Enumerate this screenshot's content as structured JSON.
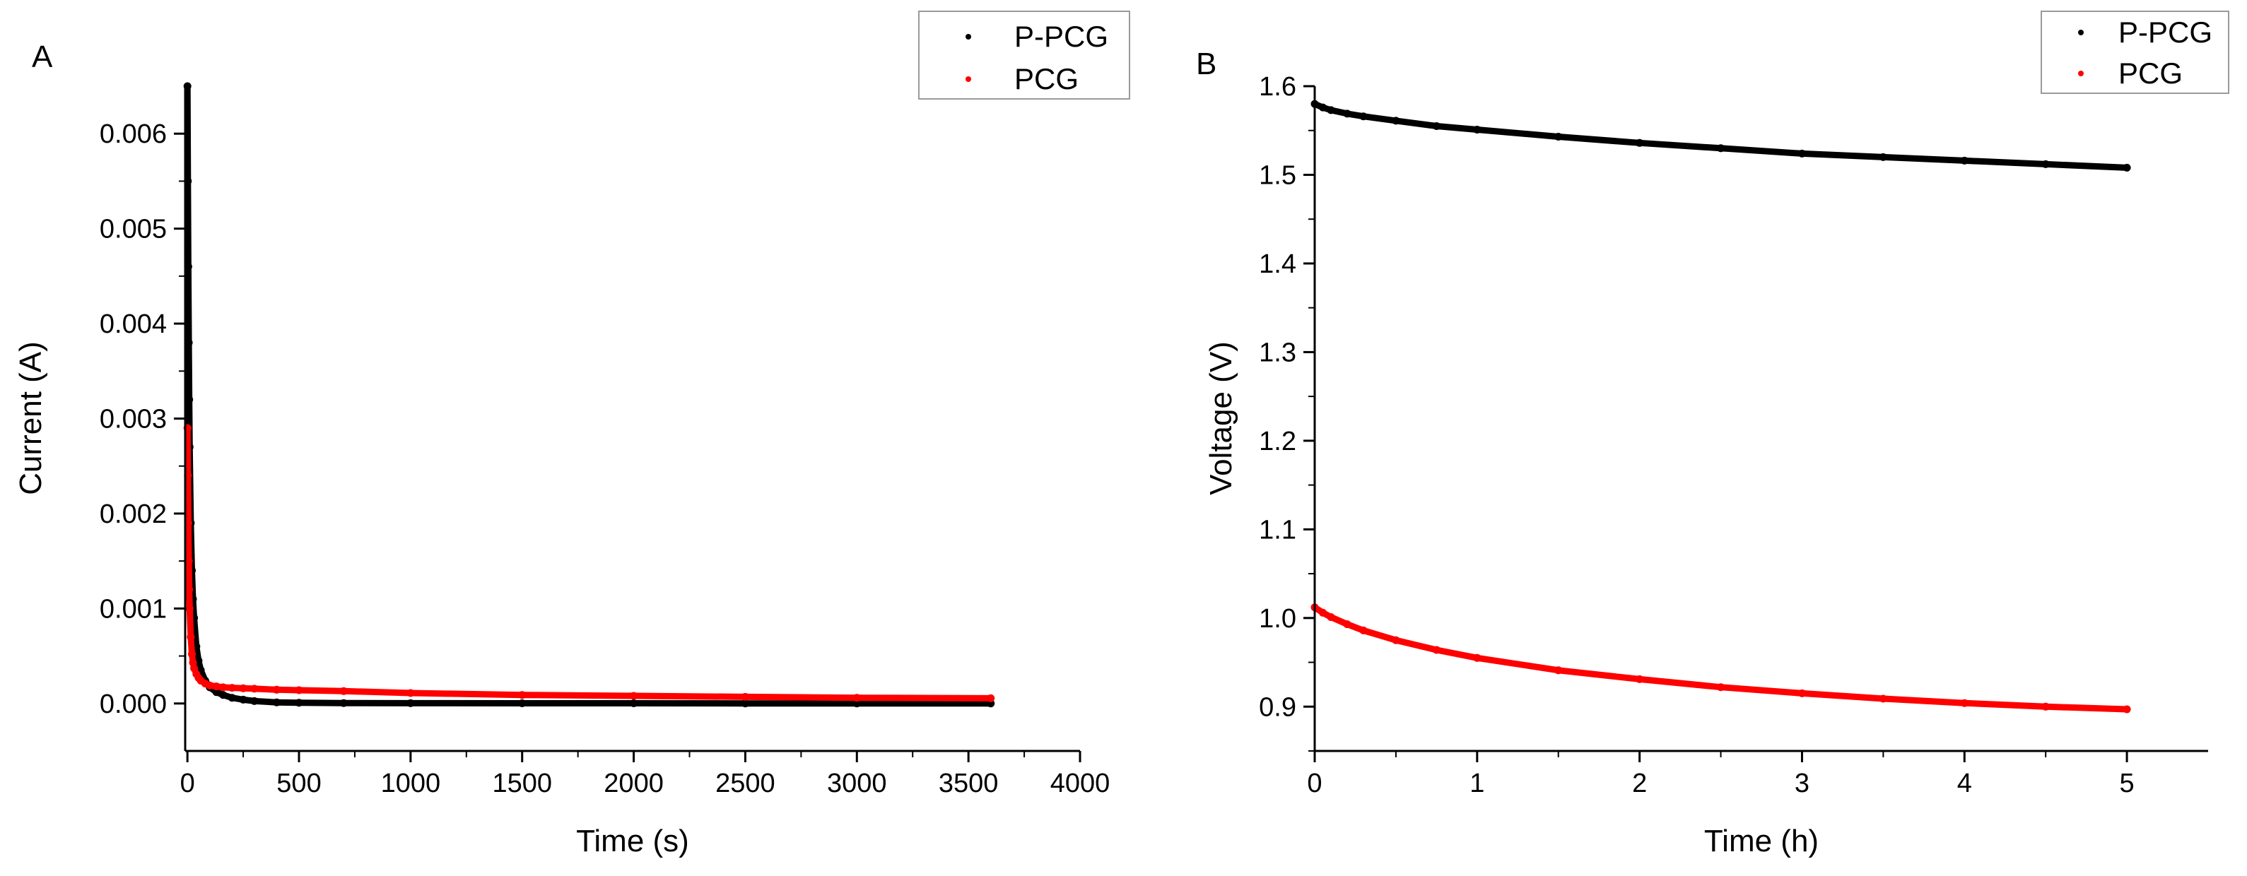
{
  "chart_data": [
    {
      "type": "scatter",
      "panel_label": "A",
      "xlabel": "Time (s)",
      "ylabel": "Current (A)",
      "xlim": [
        -10,
        4000
      ],
      "ylim": [
        -0.0005,
        0.0065
      ],
      "x_ticks": [
        0,
        500,
        1000,
        1500,
        2000,
        2500,
        3000,
        3500,
        4000
      ],
      "x_tick_labels": [
        "0",
        "500",
        "1000",
        "1500",
        "2000",
        "2500",
        "3000",
        "3500",
        "4000"
      ],
      "y_ticks": [
        0.0,
        0.001,
        0.002,
        0.003,
        0.004,
        0.005,
        0.006
      ],
      "y_tick_labels": [
        "0.000",
        "0.001",
        "0.002",
        "0.003",
        "0.004",
        "0.005",
        "0.006"
      ],
      "grid": false,
      "legend_position": "top-right",
      "series": [
        {
          "name": "P-PCG",
          "color": "#000000",
          "x": [
            0,
            2,
            4,
            6,
            8,
            10,
            15,
            20,
            25,
            30,
            40,
            50,
            60,
            80,
            100,
            130,
            160,
            200,
            250,
            300,
            400,
            500,
            700,
            1000,
            1500,
            2000,
            2500,
            3000,
            3600
          ],
          "y": [
            0.0065,
            0.0055,
            0.0046,
            0.0038,
            0.0032,
            0.0027,
            0.0019,
            0.0014,
            0.0011,
            0.0009,
            0.0006,
            0.00045,
            0.00035,
            0.00024,
            0.00017,
            0.00012,
            9e-05,
            6e-05,
            4e-05,
            2.5e-05,
            1.2e-05,
            8e-06,
            4e-06,
            3e-06,
            2e-06,
            2e-06,
            1e-06,
            1e-06,
            1e-06
          ]
        },
        {
          "name": "PCG",
          "color": "#ff0000",
          "x": [
            0,
            2,
            4,
            6,
            8,
            10,
            15,
            20,
            25,
            30,
            40,
            50,
            60,
            80,
            100,
            130,
            160,
            200,
            250,
            300,
            400,
            500,
            700,
            1000,
            1500,
            2000,
            2500,
            3000,
            3600
          ],
          "y": [
            0.0029,
            0.0024,
            0.0019,
            0.0015,
            0.0012,
            0.001,
            0.0007,
            0.00052,
            0.00043,
            0.00037,
            0.00031,
            0.00027,
            0.00024,
            0.00021,
            0.00019,
            0.00018,
            0.00017,
            0.000165,
            0.00016,
            0.000155,
            0.000145,
            0.00014,
            0.00013,
            0.00011,
            9e-05,
            8e-05,
            7e-05,
            6e-05,
            5.5e-05
          ]
        }
      ]
    },
    {
      "type": "scatter",
      "panel_label": "B",
      "xlabel": "Time (h)",
      "ylabel": "Voltage (V)",
      "xlim": [
        0,
        5.5
      ],
      "ylim": [
        0.85,
        1.6
      ],
      "x_ticks": [
        0,
        1,
        2,
        3,
        4,
        5
      ],
      "x_tick_labels": [
        "0",
        "1",
        "2",
        "3",
        "4",
        "5"
      ],
      "y_ticks": [
        0.9,
        1.0,
        1.1,
        1.2,
        1.3,
        1.4,
        1.5,
        1.6
      ],
      "y_tick_labels": [
        "0.9",
        "1.0",
        "1.1",
        "1.2",
        "1.3",
        "1.4",
        "1.5",
        "1.6"
      ],
      "grid": false,
      "legend_position": "top-right",
      "series": [
        {
          "name": "P-PCG",
          "color": "#000000",
          "x": [
            0,
            0.05,
            0.1,
            0.2,
            0.3,
            0.5,
            0.75,
            1,
            1.5,
            2,
            2.5,
            3,
            3.5,
            4,
            4.5,
            5
          ],
          "y": [
            1.58,
            1.576,
            1.573,
            1.569,
            1.566,
            1.561,
            1.555,
            1.551,
            1.543,
            1.536,
            1.53,
            1.524,
            1.52,
            1.516,
            1.512,
            1.508
          ]
        },
        {
          "name": "PCG",
          "color": "#ff0000",
          "x": [
            0,
            0.05,
            0.1,
            0.2,
            0.3,
            0.5,
            0.75,
            1,
            1.5,
            2,
            2.5,
            3,
            3.5,
            4,
            4.5,
            5
          ],
          "y": [
            1.012,
            1.006,
            1.001,
            0.993,
            0.986,
            0.975,
            0.964,
            0.955,
            0.941,
            0.931,
            0.922,
            0.915,
            0.909,
            0.904,
            0.9,
            0.897
          ]
        }
      ]
    }
  ]
}
